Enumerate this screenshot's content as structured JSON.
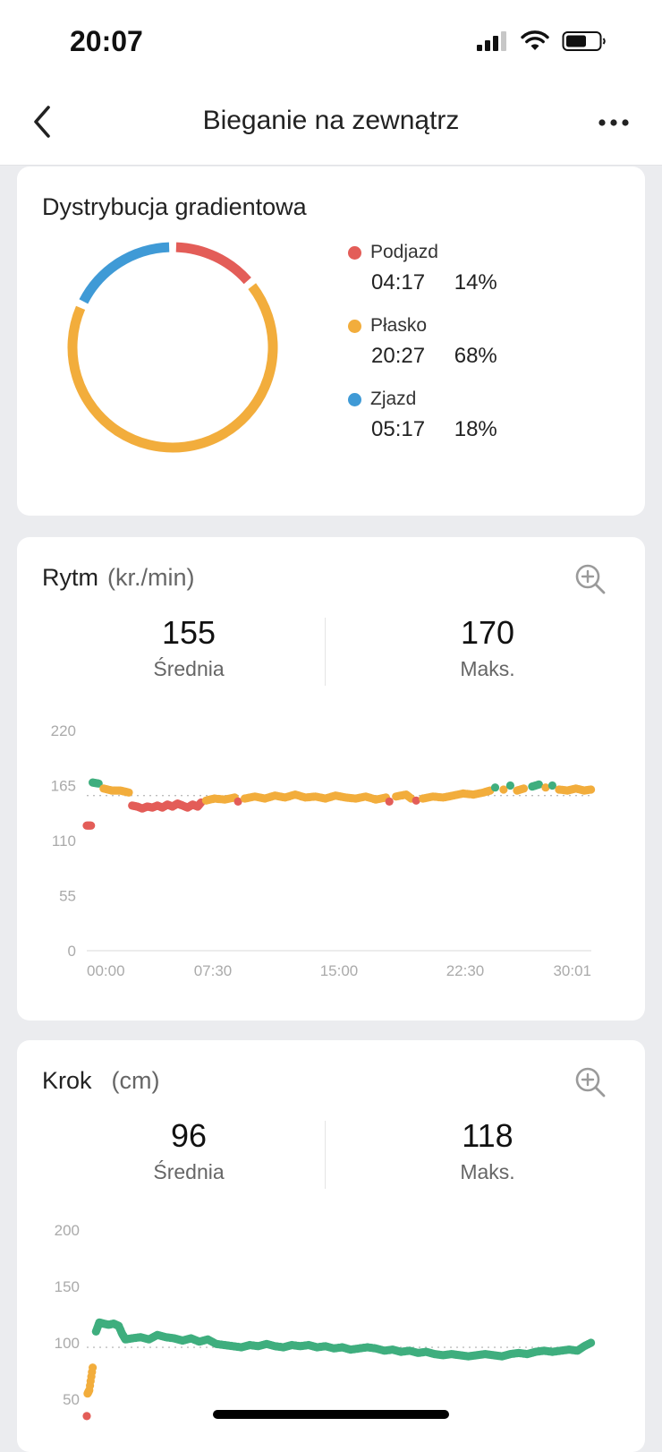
{
  "status_bar": {
    "time": "20:07"
  },
  "header": {
    "title": "Bieganie na zewnątrz"
  },
  "gradient_card": {
    "title": "Dystrybucja gradientowa",
    "segments": [
      {
        "label": "Podjazd",
        "time": "04:17",
        "percent": "14%",
        "share": 0.14,
        "color": "#e35d58"
      },
      {
        "label": "Płasko",
        "time": "20:27",
        "percent": "68%",
        "share": 0.68,
        "color": "#f2ad3c"
      },
      {
        "label": "Zjazd",
        "time": "05:17",
        "percent": "18%",
        "share": 0.18,
        "color": "#3f9ad6"
      }
    ]
  },
  "cadence_card": {
    "title": "Rytm",
    "unit": "(kr./min)",
    "avg_value": "155",
    "avg_label": "Średnia",
    "max_value": "170",
    "max_label": "Maks."
  },
  "stride_card": {
    "title": "Krok",
    "unit": "(cm)",
    "avg_value": "96",
    "avg_label": "Średnia",
    "max_value": "118",
    "max_label": "Maks."
  },
  "chart_data": [
    {
      "type": "scatter",
      "title": "Rytm (kr./min)",
      "ylim": [
        0,
        220
      ],
      "y_ticks": [
        "220",
        "165",
        "110",
        "55",
        "0"
      ],
      "x_ticks": [
        "00:00",
        "07:30",
        "15:00",
        "22:30",
        "30:01"
      ],
      "x_range_min": [
        0,
        30.02
      ],
      "reference_line": 155,
      "grid": false,
      "points_min_value_color": [
        [
          0.0,
          125,
          "red"
        ],
        [
          0.25,
          125,
          "red"
        ],
        [
          0.35,
          168,
          "green"
        ],
        [
          0.7,
          167,
          "green"
        ],
        [
          1.0,
          162,
          "orange"
        ],
        [
          1.5,
          160,
          "orange"
        ],
        [
          2.0,
          160,
          "orange"
        ],
        [
          2.5,
          158,
          "orange"
        ],
        [
          2.7,
          145,
          "red"
        ],
        [
          3.0,
          144,
          "red"
        ],
        [
          3.3,
          142,
          "red"
        ],
        [
          3.6,
          144,
          "red"
        ],
        [
          3.9,
          143,
          "red"
        ],
        [
          4.2,
          145,
          "red"
        ],
        [
          4.5,
          143,
          "red"
        ],
        [
          4.8,
          146,
          "red"
        ],
        [
          5.1,
          144,
          "red"
        ],
        [
          5.4,
          147,
          "red"
        ],
        [
          5.7,
          145,
          "red"
        ],
        [
          6.0,
          143,
          "red"
        ],
        [
          6.3,
          146,
          "red"
        ],
        [
          6.6,
          144,
          "red"
        ],
        [
          6.8,
          148,
          "red"
        ],
        [
          7.1,
          150,
          "orange"
        ],
        [
          7.6,
          152,
          "orange"
        ],
        [
          8.2,
          151,
          "orange"
        ],
        [
          8.8,
          153,
          "orange"
        ],
        [
          9.0,
          149,
          "red"
        ],
        [
          9.4,
          152,
          "orange"
        ],
        [
          10.0,
          154,
          "orange"
        ],
        [
          10.6,
          152,
          "orange"
        ],
        [
          11.2,
          155,
          "orange"
        ],
        [
          11.8,
          153,
          "orange"
        ],
        [
          12.4,
          156,
          "orange"
        ],
        [
          13.0,
          153,
          "orange"
        ],
        [
          13.6,
          154,
          "orange"
        ],
        [
          14.2,
          152,
          "orange"
        ],
        [
          14.8,
          155,
          "orange"
        ],
        [
          15.4,
          153,
          "orange"
        ],
        [
          16.0,
          152,
          "orange"
        ],
        [
          16.6,
          154,
          "orange"
        ],
        [
          17.2,
          151,
          "orange"
        ],
        [
          17.8,
          153,
          "orange"
        ],
        [
          18.0,
          149,
          "red"
        ],
        [
          18.4,
          154,
          "orange"
        ],
        [
          19.0,
          156,
          "orange"
        ],
        [
          19.3,
          152,
          "orange"
        ],
        [
          19.6,
          150,
          "red"
        ],
        [
          20.0,
          152,
          "orange"
        ],
        [
          20.6,
          154,
          "orange"
        ],
        [
          21.2,
          153,
          "orange"
        ],
        [
          21.8,
          155,
          "orange"
        ],
        [
          22.4,
          157,
          "orange"
        ],
        [
          23.0,
          156,
          "orange"
        ],
        [
          23.6,
          158,
          "orange"
        ],
        [
          24.0,
          160,
          "orange"
        ],
        [
          24.3,
          163,
          "green"
        ],
        [
          24.8,
          161,
          "orange"
        ],
        [
          25.2,
          165,
          "green"
        ],
        [
          25.6,
          160,
          "orange"
        ],
        [
          26.0,
          162,
          "orange"
        ],
        [
          26.5,
          164,
          "green"
        ],
        [
          26.9,
          166,
          "green"
        ],
        [
          27.3,
          163,
          "orange"
        ],
        [
          27.7,
          165,
          "green"
        ],
        [
          28.1,
          161,
          "orange"
        ],
        [
          28.6,
          160,
          "orange"
        ],
        [
          29.1,
          162,
          "orange"
        ],
        [
          29.6,
          160,
          "orange"
        ],
        [
          30.0,
          161,
          "orange"
        ]
      ]
    },
    {
      "type": "scatter",
      "title": "Krok (cm)",
      "ylim": [
        0,
        200
      ],
      "y_ticks": [
        "200",
        "150",
        "100",
        "50"
      ],
      "reference_line": 96,
      "grid": false,
      "points_min_value_color": [
        [
          0.0,
          35,
          "red"
        ],
        [
          0.05,
          55,
          "orange"
        ],
        [
          0.15,
          58,
          "orange"
        ],
        [
          0.35,
          78,
          "orange"
        ],
        [
          0.55,
          110,
          "green"
        ],
        [
          0.75,
          118,
          "green"
        ],
        [
          1.0,
          117,
          "green"
        ],
        [
          1.3,
          116,
          "green"
        ],
        [
          1.6,
          117,
          "green"
        ],
        [
          1.9,
          115,
          "green"
        ],
        [
          2.1,
          108,
          "green"
        ],
        [
          2.3,
          103,
          "green"
        ],
        [
          2.7,
          104,
          "green"
        ],
        [
          3.2,
          105,
          "green"
        ],
        [
          3.7,
          103,
          "green"
        ],
        [
          4.2,
          107,
          "green"
        ],
        [
          4.7,
          105,
          "green"
        ],
        [
          5.2,
          104,
          "green"
        ],
        [
          5.7,
          102,
          "green"
        ],
        [
          6.2,
          104,
          "green"
        ],
        [
          6.7,
          101,
          "green"
        ],
        [
          7.2,
          103,
          "green"
        ],
        [
          7.7,
          99,
          "green"
        ],
        [
          8.2,
          98,
          "green"
        ],
        [
          8.7,
          97,
          "green"
        ],
        [
          9.2,
          96,
          "green"
        ],
        [
          9.7,
          98,
          "green"
        ],
        [
          10.2,
          97,
          "green"
        ],
        [
          10.7,
          99,
          "green"
        ],
        [
          11.2,
          97,
          "green"
        ],
        [
          11.7,
          96,
          "green"
        ],
        [
          12.2,
          98,
          "green"
        ],
        [
          12.7,
          97,
          "green"
        ],
        [
          13.2,
          98,
          "green"
        ],
        [
          13.7,
          96,
          "green"
        ],
        [
          14.2,
          97,
          "green"
        ],
        [
          14.7,
          95,
          "green"
        ],
        [
          15.2,
          96,
          "green"
        ],
        [
          15.7,
          94,
          "green"
        ],
        [
          16.2,
          95,
          "green"
        ],
        [
          16.7,
          96,
          "green"
        ],
        [
          17.2,
          95,
          "green"
        ],
        [
          17.7,
          93,
          "green"
        ],
        [
          18.2,
          94,
          "green"
        ],
        [
          18.7,
          92,
          "green"
        ],
        [
          19.2,
          93,
          "green"
        ],
        [
          19.7,
          91,
          "green"
        ],
        [
          20.2,
          92,
          "green"
        ],
        [
          20.7,
          90,
          "green"
        ],
        [
          21.2,
          89,
          "green"
        ],
        [
          21.7,
          90,
          "green"
        ],
        [
          22.2,
          89,
          "green"
        ],
        [
          22.7,
          88,
          "green"
        ],
        [
          23.2,
          89,
          "green"
        ],
        [
          23.7,
          90,
          "green"
        ],
        [
          24.2,
          89,
          "green"
        ],
        [
          24.7,
          88,
          "green"
        ],
        [
          25.2,
          90,
          "green"
        ],
        [
          25.7,
          91,
          "green"
        ],
        [
          26.2,
          90,
          "green"
        ],
        [
          26.7,
          92,
          "green"
        ],
        [
          27.2,
          93,
          "green"
        ],
        [
          27.7,
          92,
          "green"
        ],
        [
          28.2,
          93,
          "green"
        ],
        [
          28.7,
          94,
          "green"
        ],
        [
          29.2,
          93,
          "green"
        ],
        [
          29.6,
          97,
          "green"
        ],
        [
          30.0,
          100,
          "green"
        ]
      ]
    }
  ]
}
